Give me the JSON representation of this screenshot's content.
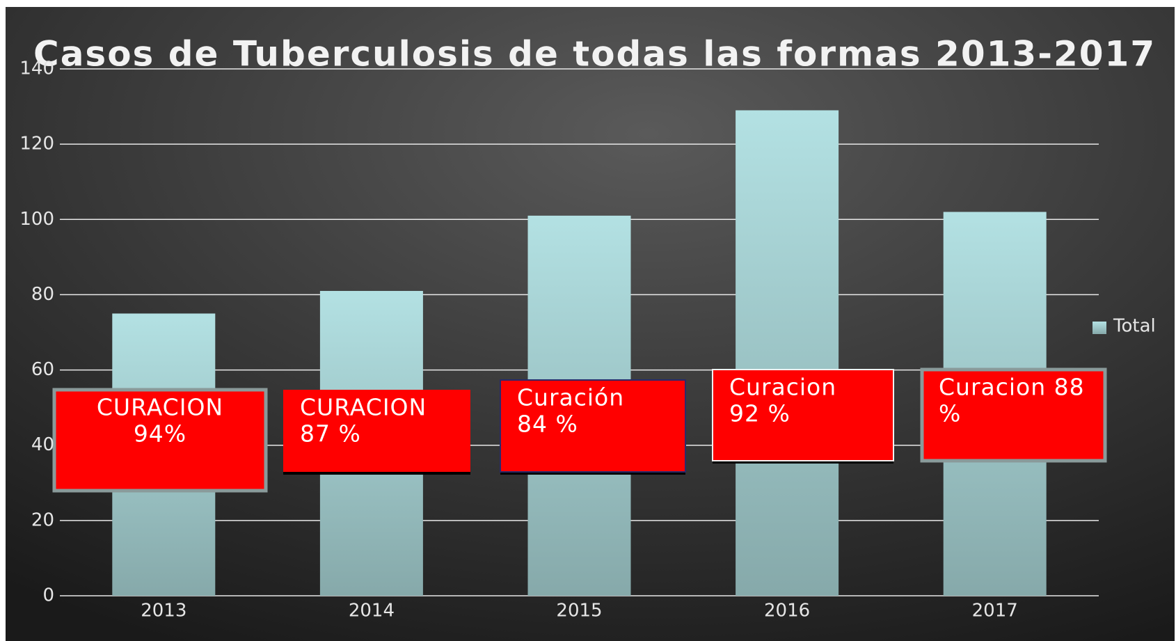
{
  "chart_data": {
    "type": "bar",
    "title": "Casos de Tuberculosis de todas las formas  2013-2017",
    "categories": [
      "2013",
      "2014",
      "2015",
      "2016",
      "2017"
    ],
    "series": [
      {
        "name": "Total",
        "color": "#a6d2d4",
        "values": [
          75,
          81,
          101,
          129,
          102
        ]
      }
    ],
    "ylim": [
      0,
      140
    ],
    "yticks": [
      0,
      20,
      40,
      60,
      80,
      100,
      120,
      140
    ],
    "grid": true,
    "legend": "right",
    "annotations": [
      {
        "lines": [
          "CURACION",
          "94%"
        ]
      },
      {
        "lines": [
          "CURACION",
          "87 %"
        ]
      },
      {
        "lines": [
          "Curación",
          "84 %"
        ]
      },
      {
        "lines": [
          "Curacion",
          "92 %"
        ]
      },
      {
        "lines": [
          "Curacion 88",
          "%"
        ]
      }
    ]
  }
}
